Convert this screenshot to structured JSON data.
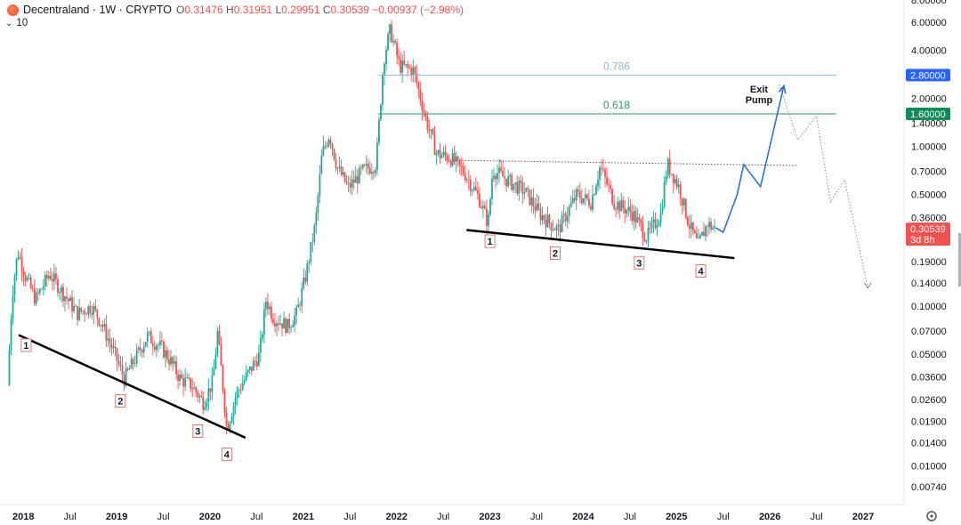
{
  "header": {
    "symbol": "Decentraland · 1W · CRYPTO",
    "open_label": "O",
    "open": "0.31476",
    "high_label": "H",
    "high": "0.31951",
    "low_label": "L",
    "low": "0.29951",
    "close_label": "C",
    "close": "0.30539",
    "change": "−0.00937 (−2.98%)",
    "indicator": "10"
  },
  "colors": {
    "up": "#26a69a",
    "down": "#ef5350",
    "fib_786": "#8fb8d8",
    "fib_618": "#2e9a6e",
    "projection": "#2f6fd6",
    "trendline": "#000000",
    "tag_blue": "#2962ff",
    "tag_green": "#138a5a",
    "tag_red": "#ef5350"
  },
  "chart_data": {
    "type": "candlestick",
    "y_scale": "log",
    "ylim": [
      0.0058,
      9.0
    ],
    "xlim": [
      "2017-10",
      "2027-05"
    ],
    "price_ticks": [
      "6.00000",
      "4.00000",
      "2.00000",
      "1.40000",
      "1.00000",
      "0.70000",
      "0.50000",
      "0.36000",
      "0.19000",
      "0.14000",
      "0.10000",
      "0.07000",
      "0.05000",
      "0.03600",
      "0.02600",
      "0.01900",
      "0.01400",
      "0.01000",
      "0.00740"
    ],
    "price_tick_values": [
      6.0,
      4.0,
      2.0,
      1.4,
      1.0,
      0.7,
      0.5,
      0.36,
      0.19,
      0.14,
      0.1,
      0.07,
      0.05,
      0.036,
      0.026,
      0.019,
      0.014,
      0.01,
      0.0074
    ],
    "time_ticks": [
      {
        "t": 2018.0,
        "label": "2018"
      },
      {
        "t": 2018.5,
        "label": "Jul"
      },
      {
        "t": 2019.0,
        "label": "2019"
      },
      {
        "t": 2019.5,
        "label": "Jul"
      },
      {
        "t": 2020.0,
        "label": "2020"
      },
      {
        "t": 2020.5,
        "label": "Jul"
      },
      {
        "t": 2021.0,
        "label": "2021"
      },
      {
        "t": 2021.5,
        "label": "Jul"
      },
      {
        "t": 2022.0,
        "label": "2022"
      },
      {
        "t": 2022.5,
        "label": "Jul"
      },
      {
        "t": 2023.0,
        "label": "2023"
      },
      {
        "t": 2023.5,
        "label": "Jul"
      },
      {
        "t": 2024.0,
        "label": "2024"
      },
      {
        "t": 2024.5,
        "label": "Jul"
      },
      {
        "t": 2025.0,
        "label": "2025"
      },
      {
        "t": 2025.5,
        "label": "Jul"
      },
      {
        "t": 2026.0,
        "label": "2026"
      },
      {
        "t": 2026.5,
        "label": "Jul"
      },
      {
        "t": 2027.0,
        "label": "2027"
      }
    ],
    "price_path": [
      [
        2017.85,
        0.032
      ],
      [
        2017.9,
        0.12
      ],
      [
        2017.96,
        0.22
      ],
      [
        2018.05,
        0.15
      ],
      [
        2018.15,
        0.11
      ],
      [
        2018.3,
        0.16
      ],
      [
        2018.45,
        0.12
      ],
      [
        2018.6,
        0.09
      ],
      [
        2018.75,
        0.1
      ],
      [
        2018.85,
        0.08
      ],
      [
        2019.0,
        0.05
      ],
      [
        2019.1,
        0.035
      ],
      [
        2019.2,
        0.045
      ],
      [
        2019.35,
        0.065
      ],
      [
        2019.5,
        0.055
      ],
      [
        2019.6,
        0.045
      ],
      [
        2019.7,
        0.035
      ],
      [
        2019.82,
        0.032
      ],
      [
        2019.95,
        0.025
      ],
      [
        2020.05,
        0.034
      ],
      [
        2020.1,
        0.068
      ],
      [
        2020.15,
        0.035
      ],
      [
        2020.2,
        0.017
      ],
      [
        2020.3,
        0.028
      ],
      [
        2020.45,
        0.04
      ],
      [
        2020.55,
        0.05
      ],
      [
        2020.62,
        0.11
      ],
      [
        2020.7,
        0.085
      ],
      [
        2020.85,
        0.075
      ],
      [
        2020.95,
        0.09
      ],
      [
        2021.05,
        0.16
      ],
      [
        2021.15,
        0.33
      ],
      [
        2021.22,
        0.9
      ],
      [
        2021.3,
        1.2
      ],
      [
        2021.38,
        0.75
      ],
      [
        2021.5,
        0.55
      ],
      [
        2021.65,
        0.7
      ],
      [
        2021.8,
        0.78
      ],
      [
        2021.88,
        3.5
      ],
      [
        2021.95,
        5.4
      ],
      [
        2022.05,
        3.2
      ],
      [
        2022.2,
        3.0
      ],
      [
        2022.33,
        1.5
      ],
      [
        2022.45,
        0.9
      ],
      [
        2022.6,
        0.85
      ],
      [
        2022.75,
        0.68
      ],
      [
        2022.9,
        0.48
      ],
      [
        2023.0,
        0.33
      ],
      [
        2023.05,
        0.72
      ],
      [
        2023.2,
        0.62
      ],
      [
        2023.4,
        0.52
      ],
      [
        2023.55,
        0.38
      ],
      [
        2023.75,
        0.3
      ],
      [
        2023.95,
        0.5
      ],
      [
        2024.1,
        0.45
      ],
      [
        2024.2,
        0.75
      ],
      [
        2024.35,
        0.45
      ],
      [
        2024.55,
        0.38
      ],
      [
        2024.7,
        0.27
      ],
      [
        2024.85,
        0.38
      ],
      [
        2024.92,
        0.78
      ],
      [
        2025.05,
        0.55
      ],
      [
        2025.15,
        0.33
      ],
      [
        2025.25,
        0.24
      ],
      [
        2025.35,
        0.33
      ],
      [
        2025.42,
        0.305
      ]
    ],
    "fib_levels": [
      {
        "label": "0.786",
        "price": 2.8
      },
      {
        "label": "0.618",
        "price": 1.6
      }
    ],
    "last_price": {
      "value": "0.30539",
      "countdown": "3d 8h",
      "price": 0.30539
    },
    "fib_tags": [
      {
        "value": "2.80000",
        "price": 2.8
      },
      {
        "value": "1.60000",
        "price": 1.6
      }
    ],
    "resistance_dotted": {
      "from": [
        2022.6,
        0.82
      ],
      "to": [
        2026.3,
        0.76
      ]
    },
    "trendlines": [
      {
        "name": "falling-support-2018-2020",
        "from": [
          2017.95,
          0.066
        ],
        "to": [
          2020.38,
          0.015
        ]
      },
      {
        "name": "support-2023-2025",
        "from": [
          2022.75,
          0.3
        ],
        "to": [
          2025.62,
          0.2
        ]
      }
    ],
    "wave_markers_left": [
      {
        "label": "1",
        "t": 2018.03,
        "p": 0.057
      },
      {
        "label": "2",
        "t": 2019.04,
        "p": 0.0255
      },
      {
        "label": "3",
        "t": 2019.87,
        "p": 0.0165
      },
      {
        "label": "4",
        "t": 2020.18,
        "p": 0.0118
      }
    ],
    "wave_markers_right": [
      {
        "label": "1",
        "t": 2023.0,
        "p": 0.255
      },
      {
        "label": "2",
        "t": 2023.7,
        "p": 0.215
      },
      {
        "label": "3",
        "t": 2024.6,
        "p": 0.187
      },
      {
        "label": "4",
        "t": 2025.26,
        "p": 0.166
      }
    ],
    "projection_path": [
      [
        2025.42,
        0.31
      ],
      [
        2025.5,
        0.29
      ],
      [
        2025.65,
        0.5
      ],
      [
        2025.72,
        0.77
      ],
      [
        2025.9,
        0.56
      ],
      [
        2026.15,
        2.4
      ]
    ],
    "post_pump_path": [
      [
        2026.1,
        2.45
      ],
      [
        2026.3,
        1.1
      ],
      [
        2026.5,
        1.55
      ],
      [
        2026.65,
        0.45
      ],
      [
        2026.8,
        0.62
      ],
      [
        2027.05,
        0.13
      ]
    ],
    "annotation": {
      "line1": "Exit",
      "line2": "Pump",
      "t": 2025.5,
      "p": 2.2
    }
  }
}
